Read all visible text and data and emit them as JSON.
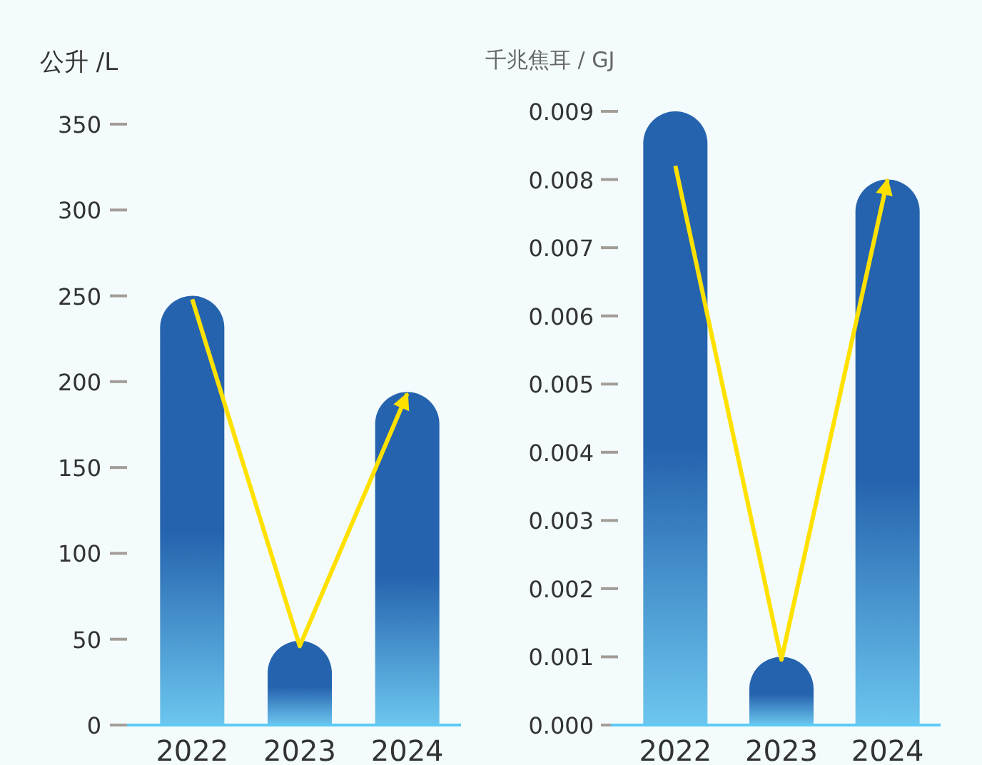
{
  "chart_data": [
    {
      "type": "bar",
      "ylabel": "公升 /L",
      "categories": [
        "2022",
        "2023",
        "2024"
      ],
      "series": [
        {
          "color": "#2563ae",
          "values": [
            250,
            49,
            194
          ]
        },
        {
          "type": "line",
          "color": "#ffe100",
          "values": [
            248,
            46,
            193
          ]
        }
      ],
      "ylim": [
        0,
        350
      ],
      "yticks": [
        0,
        50,
        100,
        150,
        200,
        250,
        300,
        350
      ],
      "grid": false
    },
    {
      "type": "bar",
      "ylabel": "千兆焦耳 / GJ",
      "categories": [
        "2022",
        "2023",
        "2024"
      ],
      "series": [
        {
          "color": "#2563ae",
          "values": [
            0.009,
            0.001,
            0.008
          ]
        },
        {
          "type": "line",
          "color": "#ffe100",
          "values": [
            0.0082,
            0.00096,
            0.008
          ]
        }
      ],
      "ylim": [
        0,
        0.009
      ],
      "yticks": [
        {
          "value": 0,
          "label": "0.000"
        },
        {
          "value": 0.001,
          "label": "0.001"
        },
        {
          "value": 0.002,
          "label": "0.002"
        },
        {
          "value": 0.003,
          "label": "0.003"
        },
        {
          "value": 0.004,
          "label": "0.004"
        },
        {
          "value": 0.005,
          "label": "0.005"
        },
        {
          "value": 0.006,
          "label": "0.006"
        },
        {
          "value": 0.007,
          "label": "0.007"
        },
        {
          "value": 0.008,
          "label": "0.008"
        },
        {
          "value": 0.009,
          "label": "0.009"
        }
      ],
      "grid": false
    }
  ]
}
